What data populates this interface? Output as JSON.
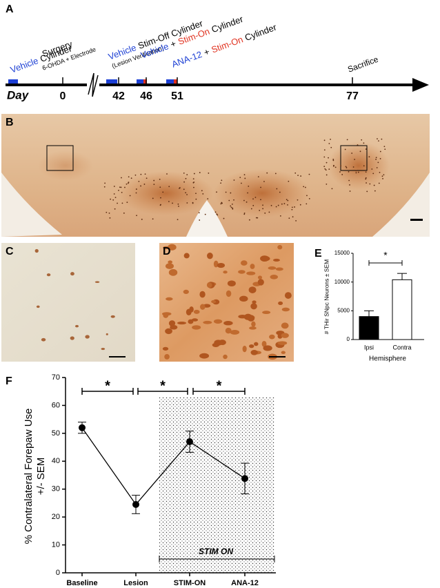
{
  "figure": {
    "panel_labels": [
      "A",
      "B",
      "C",
      "D",
      "E",
      "F"
    ],
    "timeline": {
      "axis_label": "Day",
      "days": [
        0,
        42,
        46,
        51,
        77
      ],
      "annotations": [
        {
          "parts": [
            {
              "text": "Vehicle",
              "color": "#1c3fd4"
            },
            {
              "text": "Cylinder",
              "color": "#000000"
            }
          ]
        },
        {
          "parts": [
            {
              "text": "Surgery",
              "color": "#000000"
            }
          ]
        },
        {
          "parts": [
            {
              "text": "6-OHDA + Electrode",
              "color": "#000000"
            }
          ]
        },
        {
          "parts": [
            {
              "text": "Vehicle",
              "color": "#1c3fd4"
            },
            {
              "text": "Stim-Off Cylinder",
              "color": "#000000"
            }
          ]
        },
        {
          "parts": [
            {
              "text": "(Lesion Verification)",
              "color": "#000000"
            }
          ]
        },
        {
          "parts": [
            {
              "text": "Vehicle",
              "color": "#1c3fd4"
            },
            {
              "text": "+",
              "color": "#000000"
            },
            {
              "text": "Stim-On",
              "color": "#e0301e"
            },
            {
              "text": "Cylinder",
              "color": "#000000"
            }
          ]
        },
        {
          "parts": [
            {
              "text": "ANA-12",
              "color": "#1c3fd4"
            },
            {
              "text": "+",
              "color": "#000000"
            },
            {
              "text": "Stim-On",
              "color": "#e0301e"
            },
            {
              "text": "Cylinder",
              "color": "#000000"
            }
          ]
        },
        {
          "parts": [
            {
              "text": "Sacrifice",
              "color": "#000000"
            }
          ]
        }
      ]
    }
  },
  "chart_data": [
    {
      "type": "bar",
      "categories": [
        "Ipsi",
        "Contra"
      ],
      "values": [
        4000,
        10400
      ],
      "errors": [
        1000,
        1100
      ],
      "colors": [
        "#000000",
        "#ffffff"
      ],
      "ylim": [
        0,
        15000
      ],
      "yticks": [
        0,
        5000,
        10000,
        15000
      ],
      "y_label": "# THir SNpc Neurons ± SEM",
      "x_label": "Hemisphere",
      "significance": [
        "*"
      ]
    },
    {
      "type": "line",
      "categories": [
        "Baseline",
        "Lesion",
        "STIM-ON",
        "ANA-12"
      ],
      "values": [
        52,
        24.5,
        47,
        33.8
      ],
      "errors": [
        2,
        3.3,
        3.8,
        5.5
      ],
      "color": "#000000",
      "ylim": [
        0,
        70
      ],
      "yticks": [
        0,
        10,
        20,
        30,
        40,
        50,
        60,
        70
      ],
      "y_label": [
        "% Contralateral Forepaw Use",
        "+/- SEM"
      ],
      "significance": [
        "*",
        "*",
        "*"
      ],
      "shaded_region_label": "STIM ON"
    }
  ]
}
